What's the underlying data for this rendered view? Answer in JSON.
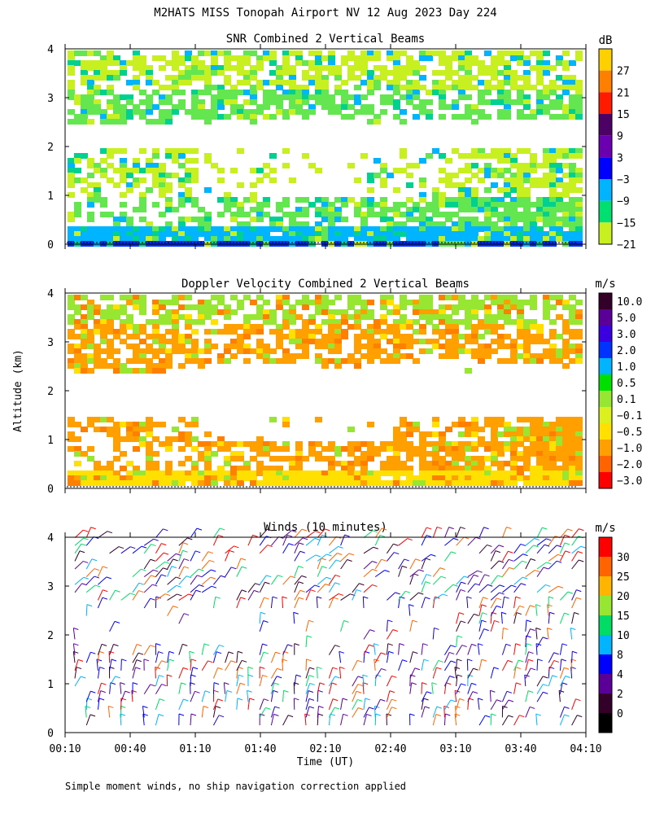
{
  "title": "M2HATS MISS Tonopah Airport NV  12 Aug 2023 Day 224",
  "footnote": "Simple moment winds, no ship navigation correction applied",
  "y_axis_label": "Altitude (km)",
  "x_axis_label": "Time (UT)",
  "chart_data": [
    {
      "id": "snr",
      "type": "heatmap",
      "title": "SNR Combined 2 Vertical Beams",
      "ylim": [
        0,
        4
      ],
      "yticks": [
        "0",
        "1",
        "2",
        "3",
        "4"
      ],
      "colorbar_unit": "dB",
      "colorbar_labels": [
        "27",
        "21",
        "15",
        "9",
        "3",
        "−3",
        "−9",
        "−15",
        "−21"
      ],
      "colorbar_colors": [
        "#ffd000",
        "#ff8000",
        "#ff1a00",
        "#4d0066",
        "#6a00b0",
        "#0000ff",
        "#00b4ff",
        "#00e070",
        "#c8f020"
      ],
      "bands": [
        {
          "y0": 0.0,
          "y1": 0.15,
          "color": "#0030ff"
        },
        {
          "y0": 0.15,
          "y1": 0.4,
          "color": "#00b4ff"
        },
        {
          "y0": 0.4,
          "y1": 1.0,
          "color": "#64e650"
        },
        {
          "y0": 1.0,
          "y1": 2.0,
          "color": "#c8f020"
        },
        {
          "y0": 2.5,
          "y1": 3.2,
          "color": "#64e650"
        },
        {
          "y0": 3.2,
          "y1": 4.0,
          "color": "#c8f020"
        }
      ]
    },
    {
      "id": "doppler",
      "type": "heatmap",
      "title": "Doppler Velocity Combined 2 Vertical Beams",
      "ylim": [
        0,
        4
      ],
      "yticks": [
        "0",
        "1",
        "2",
        "3",
        "4"
      ],
      "colorbar_unit": "m/s",
      "colorbar_labels": [
        "10.0",
        "5.0",
        "3.0",
        "2.0",
        "1.0",
        "0.5",
        "0.1",
        "−0.1",
        "−0.5",
        "−1.0",
        "−2.0",
        "−3.0"
      ],
      "colorbar_colors": [
        "#33002a",
        "#5a0099",
        "#3a00e0",
        "#0033ff",
        "#00b4ff",
        "#00e000",
        "#96e632",
        "#dcf020",
        "#ffe000",
        "#ffa000",
        "#ff6400",
        "#ff0000"
      ],
      "bands": [
        {
          "y0": 0.1,
          "y1": 0.4,
          "color": "#ffe000"
        },
        {
          "y0": 0.4,
          "y1": 1.5,
          "color": "#ffa000"
        },
        {
          "y0": 2.4,
          "y1": 3.4,
          "color": "#ffa000"
        },
        {
          "y0": 3.4,
          "y1": 4.0,
          "color": "#96e632"
        }
      ]
    },
    {
      "id": "winds",
      "type": "scatter",
      "title": "Winds (10 minutes)",
      "ylim": [
        0,
        4
      ],
      "yticks": [
        "0",
        "1",
        "2",
        "3",
        "4"
      ],
      "colorbar_unit": "m/s",
      "colorbar_labels": [
        "30",
        "25",
        "20",
        "15",
        "10",
        "8",
        "4",
        "2",
        "0"
      ],
      "colorbar_colors": [
        "#ff0000",
        "#ff6400",
        "#ffb400",
        "#96e632",
        "#00dc64",
        "#00b4ff",
        "#0000ff",
        "#5a0099",
        "#33002a",
        "#000000"
      ],
      "x_ticks": [
        "00:10",
        "00:40",
        "01:10",
        "01:40",
        "02:10",
        "02:40",
        "03:10",
        "03:40",
        "04:10"
      ]
    }
  ]
}
